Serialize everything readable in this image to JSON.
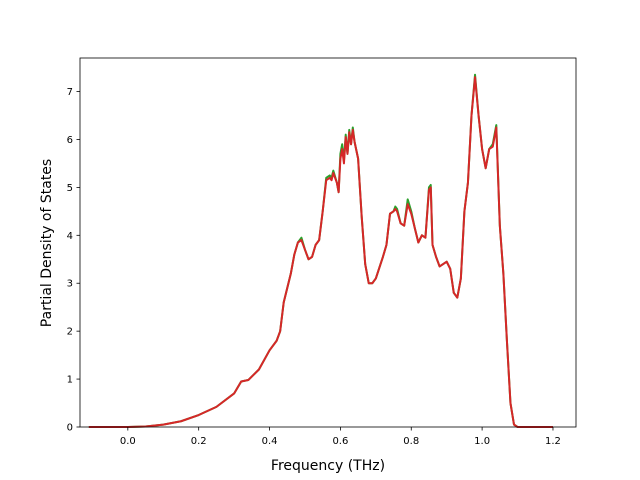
{
  "chart_data": {
    "type": "line",
    "title": "",
    "xlabel": "Frequency (THz)",
    "ylabel": "Partial Density of States",
    "xlim": [
      -0.135,
      1.265
    ],
    "ylim": [
      0,
      7.7
    ],
    "xticks": [
      0.0,
      0.2,
      0.4,
      0.6,
      0.8,
      1.0,
      1.2
    ],
    "xtick_labels": [
      "0.0",
      "0.2",
      "0.4",
      "0.6",
      "0.8",
      "1.0",
      "1.2"
    ],
    "yticks": [
      0,
      1,
      2,
      3,
      4,
      5,
      6,
      7
    ],
    "ytick_labels": [
      "0",
      "1",
      "2",
      "3",
      "4",
      "5",
      "6",
      "7"
    ],
    "grid": false,
    "legend": "none",
    "series": [
      {
        "color": "#2ca02c",
        "points": [
          [
            -0.11,
            0
          ],
          [
            0.0,
            0
          ],
          [
            0.05,
            0.01
          ],
          [
            0.1,
            0.05
          ],
          [
            0.15,
            0.12
          ],
          [
            0.2,
            0.25
          ],
          [
            0.25,
            0.42
          ],
          [
            0.3,
            0.7
          ],
          [
            0.32,
            0.95
          ],
          [
            0.34,
            0.98
          ],
          [
            0.37,
            1.2
          ],
          [
            0.4,
            1.6
          ],
          [
            0.42,
            1.8
          ],
          [
            0.43,
            2.0
          ],
          [
            0.44,
            2.6
          ],
          [
            0.46,
            3.2
          ],
          [
            0.47,
            3.6
          ],
          [
            0.48,
            3.85
          ],
          [
            0.49,
            3.95
          ],
          [
            0.5,
            3.7
          ],
          [
            0.51,
            3.5
          ],
          [
            0.52,
            3.55
          ],
          [
            0.53,
            3.8
          ],
          [
            0.54,
            3.9
          ],
          [
            0.55,
            4.5
          ],
          [
            0.56,
            5.2
          ],
          [
            0.57,
            5.25
          ],
          [
            0.575,
            5.2
          ],
          [
            0.58,
            5.35
          ],
          [
            0.59,
            5.1
          ],
          [
            0.595,
            4.9
          ],
          [
            0.6,
            5.7
          ],
          [
            0.605,
            5.9
          ],
          [
            0.61,
            5.55
          ],
          [
            0.615,
            6.1
          ],
          [
            0.62,
            5.7
          ],
          [
            0.625,
            6.2
          ],
          [
            0.63,
            5.9
          ],
          [
            0.635,
            6.25
          ],
          [
            0.64,
            5.95
          ],
          [
            0.65,
            5.6
          ],
          [
            0.66,
            4.4
          ],
          [
            0.67,
            3.4
          ],
          [
            0.68,
            3.0
          ],
          [
            0.69,
            3.0
          ],
          [
            0.7,
            3.1
          ],
          [
            0.72,
            3.55
          ],
          [
            0.73,
            3.8
          ],
          [
            0.74,
            4.45
          ],
          [
            0.75,
            4.5
          ],
          [
            0.755,
            4.6
          ],
          [
            0.76,
            4.55
          ],
          [
            0.77,
            4.25
          ],
          [
            0.78,
            4.2
          ],
          [
            0.79,
            4.75
          ],
          [
            0.8,
            4.5
          ],
          [
            0.81,
            4.15
          ],
          [
            0.82,
            3.85
          ],
          [
            0.83,
            4.0
          ],
          [
            0.84,
            3.95
          ],
          [
            0.85,
            5.0
          ],
          [
            0.855,
            5.05
          ],
          [
            0.86,
            3.8
          ],
          [
            0.87,
            3.55
          ],
          [
            0.88,
            3.35
          ],
          [
            0.9,
            3.45
          ],
          [
            0.91,
            3.3
          ],
          [
            0.92,
            2.8
          ],
          [
            0.93,
            2.7
          ],
          [
            0.94,
            3.1
          ],
          [
            0.95,
            4.5
          ],
          [
            0.96,
            5.1
          ],
          [
            0.97,
            6.5
          ],
          [
            0.98,
            7.35
          ],
          [
            0.99,
            6.5
          ],
          [
            1.0,
            5.8
          ],
          [
            1.01,
            5.4
          ],
          [
            1.02,
            5.8
          ],
          [
            1.03,
            5.9
          ],
          [
            1.04,
            6.3
          ],
          [
            1.05,
            4.2
          ],
          [
            1.06,
            3.2
          ],
          [
            1.07,
            1.8
          ],
          [
            1.08,
            0.5
          ],
          [
            1.09,
            0.05
          ],
          [
            1.1,
            0
          ],
          [
            1.2,
            0
          ]
        ]
      },
      {
        "color": "#d62728",
        "points": [
          [
            -0.11,
            0
          ],
          [
            0.0,
            0
          ],
          [
            0.05,
            0.01
          ],
          [
            0.1,
            0.05
          ],
          [
            0.15,
            0.12
          ],
          [
            0.2,
            0.25
          ],
          [
            0.25,
            0.42
          ],
          [
            0.3,
            0.7
          ],
          [
            0.32,
            0.95
          ],
          [
            0.34,
            0.98
          ],
          [
            0.37,
            1.2
          ],
          [
            0.4,
            1.6
          ],
          [
            0.42,
            1.8
          ],
          [
            0.43,
            2.0
          ],
          [
            0.44,
            2.6
          ],
          [
            0.46,
            3.2
          ],
          [
            0.47,
            3.6
          ],
          [
            0.48,
            3.85
          ],
          [
            0.49,
            3.9
          ],
          [
            0.5,
            3.7
          ],
          [
            0.51,
            3.5
          ],
          [
            0.52,
            3.55
          ],
          [
            0.53,
            3.8
          ],
          [
            0.54,
            3.9
          ],
          [
            0.55,
            4.5
          ],
          [
            0.56,
            5.15
          ],
          [
            0.57,
            5.2
          ],
          [
            0.575,
            5.15
          ],
          [
            0.58,
            5.3
          ],
          [
            0.59,
            5.1
          ],
          [
            0.595,
            4.9
          ],
          [
            0.6,
            5.6
          ],
          [
            0.605,
            5.8
          ],
          [
            0.61,
            5.5
          ],
          [
            0.615,
            6.05
          ],
          [
            0.62,
            5.7
          ],
          [
            0.625,
            6.15
          ],
          [
            0.63,
            5.9
          ],
          [
            0.635,
            6.2
          ],
          [
            0.64,
            5.95
          ],
          [
            0.65,
            5.6
          ],
          [
            0.66,
            4.4
          ],
          [
            0.67,
            3.4
          ],
          [
            0.68,
            3.0
          ],
          [
            0.69,
            3.0
          ],
          [
            0.7,
            3.1
          ],
          [
            0.72,
            3.55
          ],
          [
            0.73,
            3.8
          ],
          [
            0.74,
            4.45
          ],
          [
            0.75,
            4.5
          ],
          [
            0.755,
            4.55
          ],
          [
            0.76,
            4.5
          ],
          [
            0.77,
            4.25
          ],
          [
            0.78,
            4.2
          ],
          [
            0.79,
            4.65
          ],
          [
            0.8,
            4.45
          ],
          [
            0.81,
            4.15
          ],
          [
            0.82,
            3.85
          ],
          [
            0.83,
            4.0
          ],
          [
            0.84,
            3.95
          ],
          [
            0.85,
            4.95
          ],
          [
            0.855,
            5.0
          ],
          [
            0.86,
            3.8
          ],
          [
            0.87,
            3.55
          ],
          [
            0.88,
            3.35
          ],
          [
            0.9,
            3.45
          ],
          [
            0.91,
            3.3
          ],
          [
            0.92,
            2.8
          ],
          [
            0.93,
            2.7
          ],
          [
            0.94,
            3.1
          ],
          [
            0.95,
            4.5
          ],
          [
            0.96,
            5.1
          ],
          [
            0.97,
            6.5
          ],
          [
            0.98,
            7.3
          ],
          [
            0.99,
            6.5
          ],
          [
            1.0,
            5.8
          ],
          [
            1.01,
            5.4
          ],
          [
            1.02,
            5.8
          ],
          [
            1.03,
            5.85
          ],
          [
            1.04,
            6.25
          ],
          [
            1.05,
            4.2
          ],
          [
            1.06,
            3.2
          ],
          [
            1.07,
            1.8
          ],
          [
            1.08,
            0.5
          ],
          [
            1.09,
            0.05
          ],
          [
            1.1,
            0
          ],
          [
            1.2,
            0
          ]
        ]
      }
    ]
  }
}
